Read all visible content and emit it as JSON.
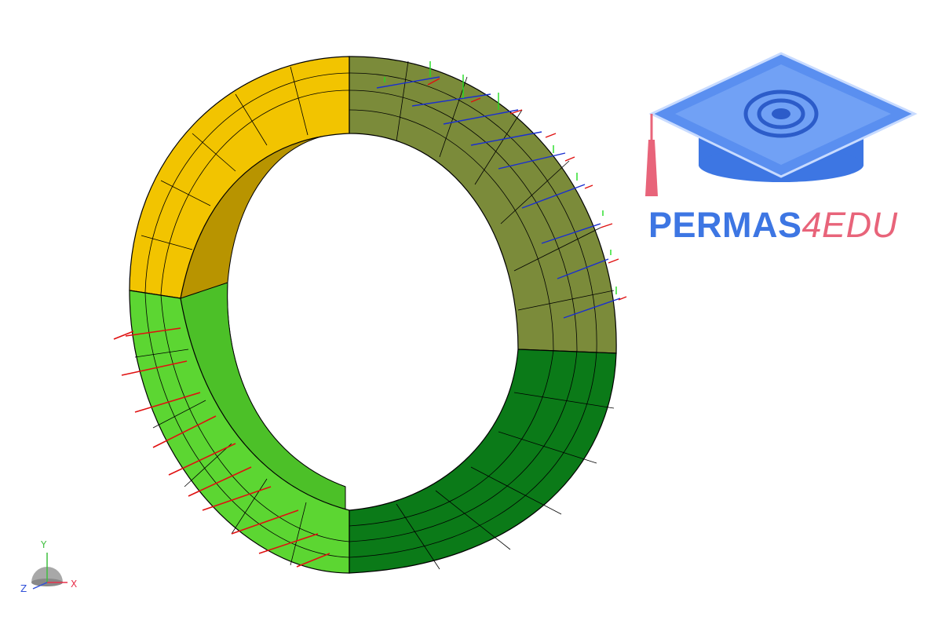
{
  "logo": {
    "brand_main": "PERMAS",
    "brand_accent": "4EDU",
    "colors": {
      "main": "#3d76e3",
      "accent": "#e8647a"
    }
  },
  "triad": {
    "y_label": "Y",
    "x_label": "X",
    "z_label": "Z",
    "colors": {
      "y": "#3fbf3f",
      "x": "#e8304a",
      "z": "#3050d8"
    }
  },
  "model": {
    "colors": {
      "top_left": "#f2c400",
      "top_right": "#7b8b3a",
      "bottom_left": "#5cd632",
      "bottom_right": "#0b7a18",
      "inner_dark": "#b58f00",
      "load_arrow": "#e01010",
      "bc_x": "#e01010",
      "bc_y": "#22dd22",
      "bc_z": "#1a2fd0"
    }
  }
}
